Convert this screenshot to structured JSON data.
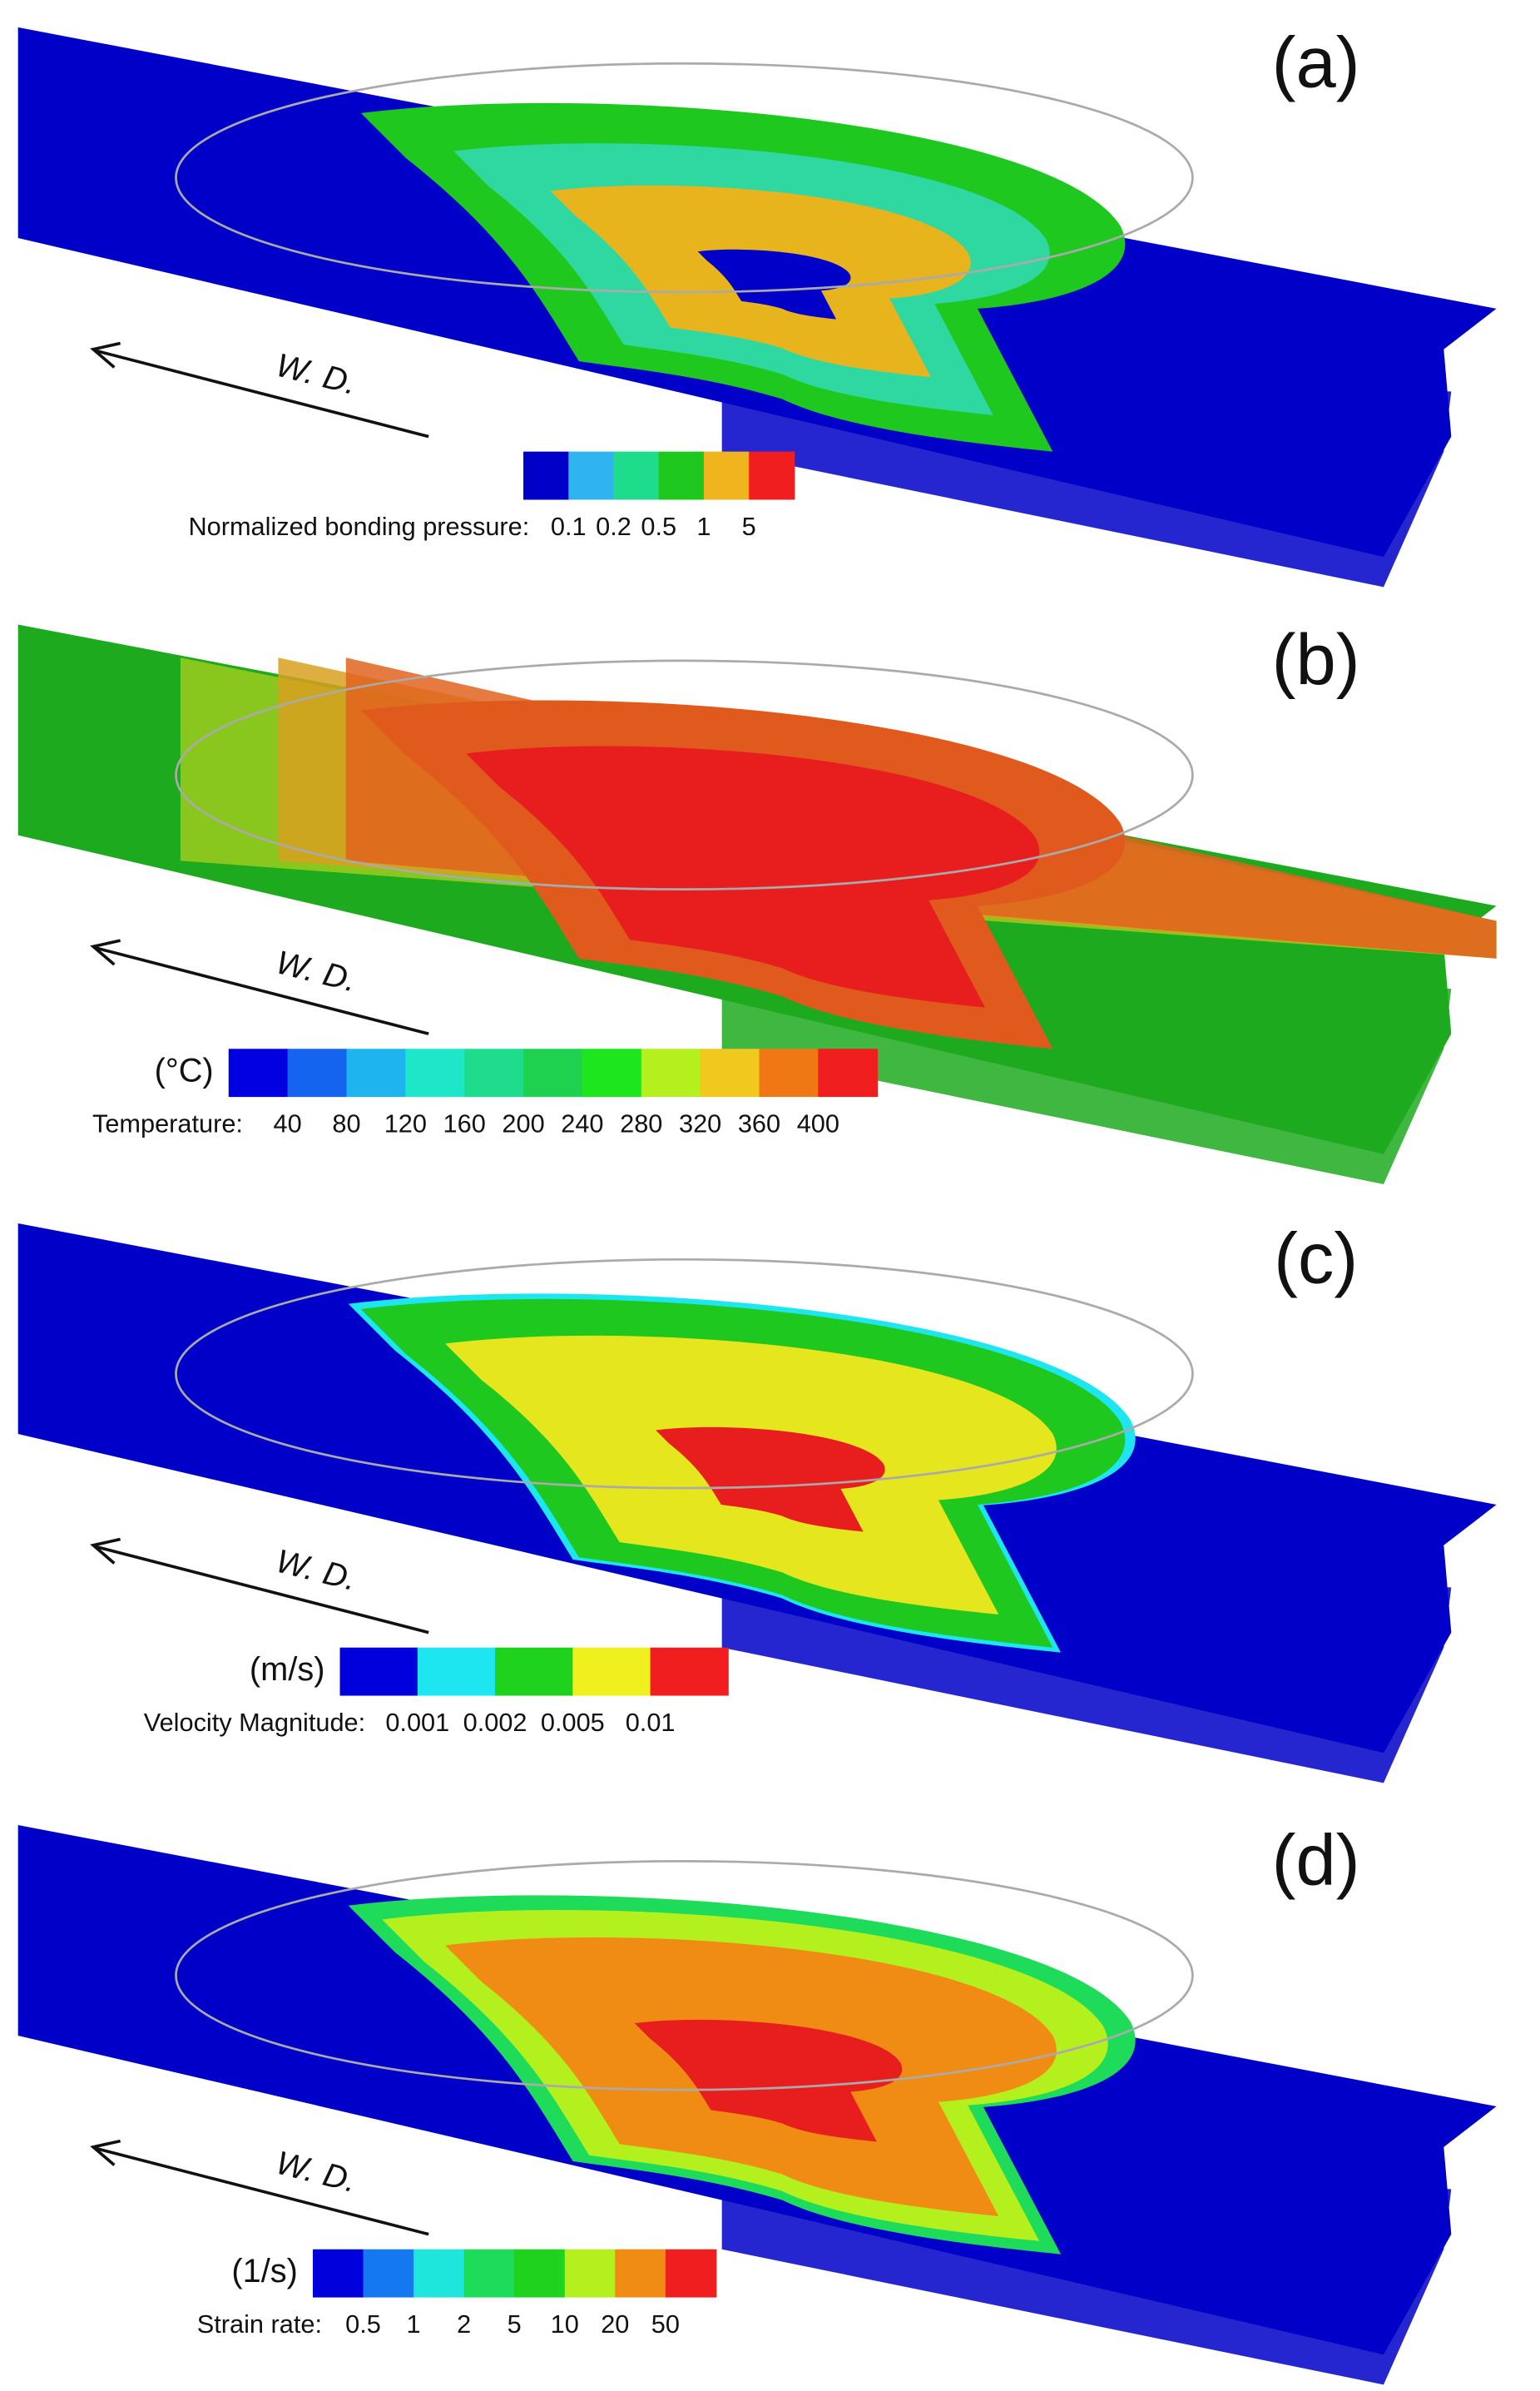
{
  "panels": [
    {
      "label": "(a)",
      "direction": "W. D.",
      "colorbar": {
        "title": "Normalized bonding pressure:",
        "colors": [
          "#0000c8",
          "#2fb4f0",
          "#1edc8c",
          "#1ec81e",
          "#f0b41e",
          "#f01e1e"
        ],
        "ticks": [
          "0.1",
          "0.2",
          "0.5",
          "1",
          "5"
        ]
      }
    },
    {
      "label": "(b)",
      "direction": "W. D.",
      "colorbar": {
        "unit": "(°C)",
        "title": "Temperature:",
        "colors": [
          "#0000e0",
          "#1464f0",
          "#1eb4f0",
          "#1ee6c8",
          "#1edc8c",
          "#1ed250",
          "#1ee61e",
          "#b4f01e",
          "#f0c81e",
          "#f07814",
          "#f01e1e"
        ],
        "ticks": [
          "40",
          "80",
          "120",
          "160",
          "200",
          "240",
          "280",
          "320",
          "360",
          "400"
        ]
      }
    },
    {
      "label": "(c)",
      "direction": "W. D.",
      "colorbar": {
        "unit": "(m/s)",
        "title": "Velocity Magnitude:",
        "colors": [
          "#0000dc",
          "#1ee6f0",
          "#1ed21e",
          "#f0f01e",
          "#f01e1e"
        ],
        "ticks": [
          "0.001",
          "0.002",
          "0.005",
          "0.01"
        ]
      }
    },
    {
      "label": "(d)",
      "direction": "W. D.",
      "colorbar": {
        "unit": "(1/s)",
        "title": "Strain rate:",
        "colors": [
          "#0000dc",
          "#1478f0",
          "#1ee6dc",
          "#1edc5a",
          "#1ed21e",
          "#b4f01e",
          "#f08c14",
          "#f01e1e"
        ],
        "ticks": [
          "0.5",
          "1",
          "2",
          "5",
          "10",
          "20",
          "50"
        ]
      }
    }
  ]
}
